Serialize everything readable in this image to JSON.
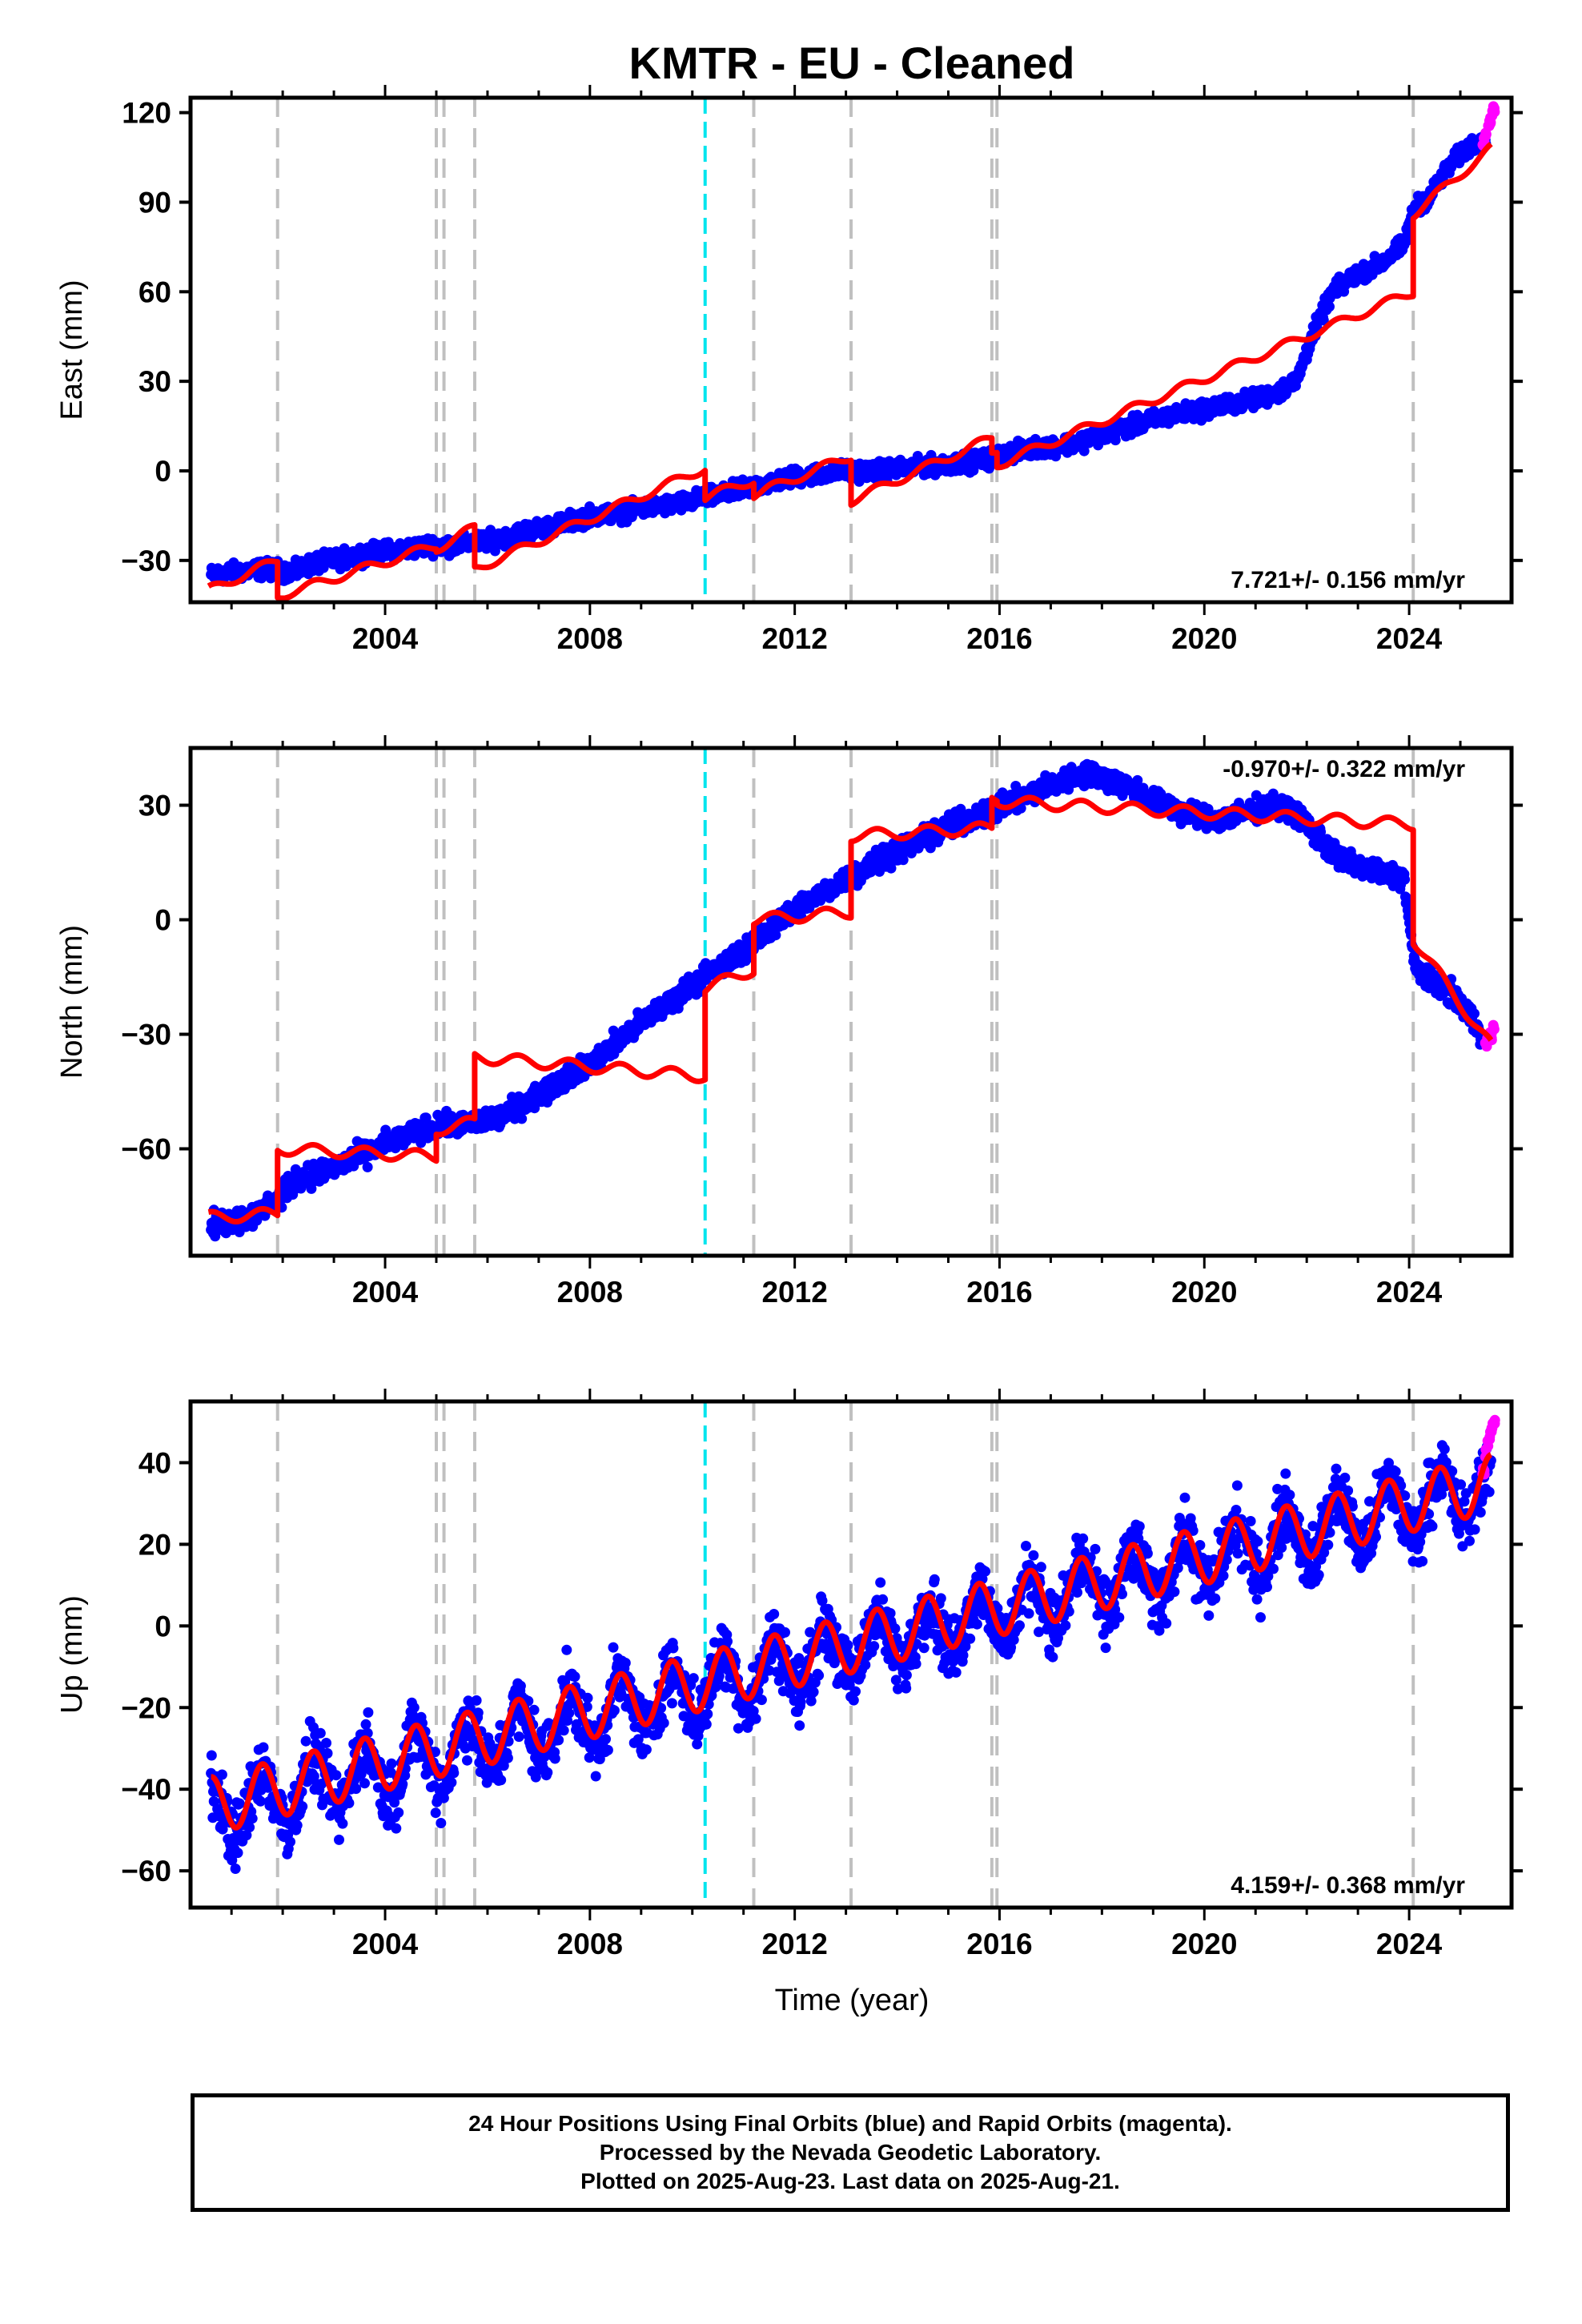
{
  "title": "KMTR  - EU - Cleaned",
  "x_axis_label": "Time (year)",
  "footer": {
    "line1": "24 Hour Positions Using Final Orbits (blue) and Rapid Orbits (magenta).",
    "line2": "Processed by the Nevada Geodetic Laboratory.",
    "line3": "Plotted on 2025-Aug-23. Last data on 2025-Aug-21."
  },
  "colors": {
    "final_orbits": "#0000ff",
    "rapid_orbits": "#ff00ff",
    "model": "#ff0000",
    "offset_line": "#c0c0c0",
    "antenna_change_line": "#00e5ee"
  },
  "chart_data": [
    {
      "type": "scatter",
      "component": "East",
      "ylabel": "East (mm)",
      "xlim": [
        2000.2,
        2026.0
      ],
      "ylim": [
        -44,
        125
      ],
      "yticks": [
        -30,
        0,
        30,
        60,
        90,
        120
      ],
      "xticks": [
        2004,
        2008,
        2012,
        2016,
        2020,
        2024
      ],
      "xtick_labels": [
        "2004",
        "2008",
        "2012",
        "2016",
        "2020",
        "2024"
      ],
      "rate_text": "7.721+/- 0.156 mm/yr",
      "rate_position": "bottom-right",
      "series": [
        {
          "name": "Final Orbits",
          "style": "points",
          "x": [
            2000.6,
            2001.0,
            2001.5,
            2001.8,
            2002.2,
            2002.6,
            2003.0,
            2003.5,
            2004.0,
            2004.5,
            2004.9,
            2005.3,
            2005.7,
            2006.2,
            2006.8,
            2007.4,
            2008.0,
            2008.6,
            2009.2,
            2009.8,
            2010.2,
            2010.6,
            2011.0,
            2011.5,
            2012.0,
            2012.5,
            2013.0,
            2013.6,
            2014.2,
            2014.8,
            2015.4,
            2015.8,
            2016.2,
            2016.8,
            2017.4,
            2018.0,
            2018.6,
            2019.2,
            2019.8,
            2020.4,
            2021.0,
            2021.4,
            2021.8,
            2022.1,
            2022.5,
            2023.0,
            2023.5,
            2023.9,
            2024.1,
            2024.4,
            2024.7,
            2025.0,
            2025.3,
            2025.5
          ],
          "y": [
            -35,
            -34,
            -33,
            -33,
            -34,
            -31,
            -30,
            -28,
            -27,
            -26,
            -25,
            -25,
            -24,
            -23,
            -20,
            -18,
            -15,
            -14,
            -12,
            -11,
            -9,
            -8,
            -6,
            -4,
            -2,
            -1,
            0,
            0,
            1,
            2,
            3,
            4,
            6,
            8,
            9,
            12,
            15,
            18,
            20,
            22,
            24,
            26,
            30,
            45,
            60,
            66,
            70,
            76,
            88,
            92,
            100,
            106,
            110,
            112
          ]
        },
        {
          "name": "Rapid Orbits",
          "style": "points",
          "x": [
            2025.45,
            2025.5,
            2025.55,
            2025.6,
            2025.65
          ],
          "y": [
            110,
            113,
            116,
            118,
            121
          ]
        },
        {
          "name": "Model",
          "style": "line",
          "seasonal_amplitude": 1.5,
          "x": [
            2000.55,
            2001.9,
            2001.9,
            2005.0,
            2005.0,
            2005.75,
            2005.75,
            2010.25,
            2010.25,
            2011.2,
            2011.2,
            2013.1,
            2013.1,
            2015.85,
            2015.85,
            2015.95,
            2015.95,
            2024.08,
            2024.08,
            2025.6
          ],
          "y": [
            -40,
            -30,
            -42,
            -25,
            -26,
            -19,
            -33,
            1,
            -9,
            -3,
            -8,
            5,
            -10,
            11,
            6,
            7,
            2,
            60,
            86,
            108
          ]
        }
      ]
    },
    {
      "type": "scatter",
      "component": "North",
      "ylabel": "North (mm)",
      "xlim": [
        2000.2,
        2026.0
      ],
      "ylim": [
        -88,
        45
      ],
      "yticks": [
        -60,
        -30,
        0,
        30
      ],
      "xticks": [
        2004,
        2008,
        2012,
        2016,
        2020,
        2024
      ],
      "xtick_labels": [
        "2004",
        "2008",
        "2012",
        "2016",
        "2020",
        "2024"
      ],
      "rate_text": "-0.970+/- 0.322 mm/yr",
      "rate_position": "top-right",
      "series": [
        {
          "name": "Final Orbits",
          "style": "points",
          "x": [
            2000.6,
            2001.0,
            2001.5,
            2001.9,
            2002.3,
            2002.8,
            2003.3,
            2003.8,
            2004.3,
            2004.8,
            2005.2,
            2005.7,
            2006.2,
            2006.7,
            2007.2,
            2007.7,
            2008.2,
            2008.7,
            2009.2,
            2009.7,
            2010.2,
            2010.6,
            2011.0,
            2011.4,
            2011.8,
            2012.3,
            2012.8,
            2013.3,
            2013.8,
            2014.3,
            2014.8,
            2015.3,
            2015.8,
            2016.3,
            2016.8,
            2017.3,
            2017.8,
            2018.3,
            2018.8,
            2019.3,
            2019.8,
            2020.3,
            2020.8,
            2021.3,
            2021.8,
            2022.2,
            2022.6,
            2023.0,
            2023.5,
            2023.9,
            2024.1,
            2024.4,
            2024.8,
            2025.2,
            2025.5
          ],
          "y": [
            -80,
            -79,
            -77,
            -73,
            -68,
            -66,
            -63,
            -60,
            -57,
            -55,
            -54,
            -53,
            -52,
            -48,
            -44,
            -40,
            -36,
            -30,
            -25,
            -20,
            -15,
            -12,
            -8,
            -4,
            1,
            5,
            9,
            13,
            17,
            20,
            23,
            26,
            28,
            31,
            34,
            37,
            38,
            36,
            33,
            30,
            27,
            26,
            28,
            30,
            28,
            22,
            16,
            14,
            12,
            11,
            -12,
            -16,
            -19,
            -25,
            -32
          ]
        },
        {
          "name": "Rapid Orbits",
          "style": "points",
          "x": [
            2025.5,
            2025.55,
            2025.6,
            2025.65
          ],
          "y": [
            -33,
            -31,
            -30,
            -29
          ]
        },
        {
          "name": "Model",
          "style": "line",
          "seasonal_amplitude": 1.5,
          "x": [
            2000.55,
            2001.9,
            2001.9,
            2005.0,
            2005.0,
            2005.75,
            2005.75,
            2010.25,
            2010.25,
            2011.2,
            2011.2,
            2013.1,
            2013.1,
            2015.85,
            2015.85,
            2015.95,
            2015.95,
            2024.08,
            2024.08,
            2025.6
          ],
          "y": [
            -78,
            -77,
            -60,
            -62,
            -55,
            -53,
            -36,
            -41,
            -18,
            -13,
            0,
            2,
            22,
            24,
            32,
            32,
            31,
            25,
            -5,
            -33
          ]
        }
      ]
    },
    {
      "type": "scatter",
      "component": "Up",
      "ylabel": "Up (mm)",
      "xlim": [
        2000.2,
        2026.0
      ],
      "ylim": [
        -69,
        55
      ],
      "yticks": [
        -60,
        -40,
        -20,
        0,
        20,
        40
      ],
      "xticks": [
        2004,
        2008,
        2012,
        2016,
        2020,
        2024
      ],
      "xtick_labels": [
        "2004",
        "2008",
        "2012",
        "2016",
        "2020",
        "2024"
      ],
      "xlabel": "Time (year)",
      "rate_text": "4.159+/- 0.368 mm/yr",
      "rate_position": "bottom-right",
      "series": [
        {
          "name": "Final Orbits",
          "style": "points",
          "seasonal_amplitude": 7,
          "scatter_spread": 6,
          "x": [
            2000.6,
            2025.6
          ],
          "y": [
            -46,
            34
          ]
        },
        {
          "name": "Rapid Orbits",
          "style": "points",
          "x": [
            2025.45,
            2025.5,
            2025.55,
            2025.6,
            2025.65
          ],
          "y": [
            38,
            42,
            45,
            48,
            50
          ]
        },
        {
          "name": "Model",
          "style": "line",
          "seasonal_amplitude": 7,
          "x": [
            2000.6,
            2025.6
          ],
          "y": [
            -44,
            35
          ]
        }
      ]
    }
  ],
  "offset_epochs": [
    2001.9,
    2005.0,
    2005.15,
    2005.75,
    2011.2,
    2013.1,
    2015.85,
    2015.95,
    2024.08
  ],
  "antenna_change_epochs": [
    2010.25
  ]
}
